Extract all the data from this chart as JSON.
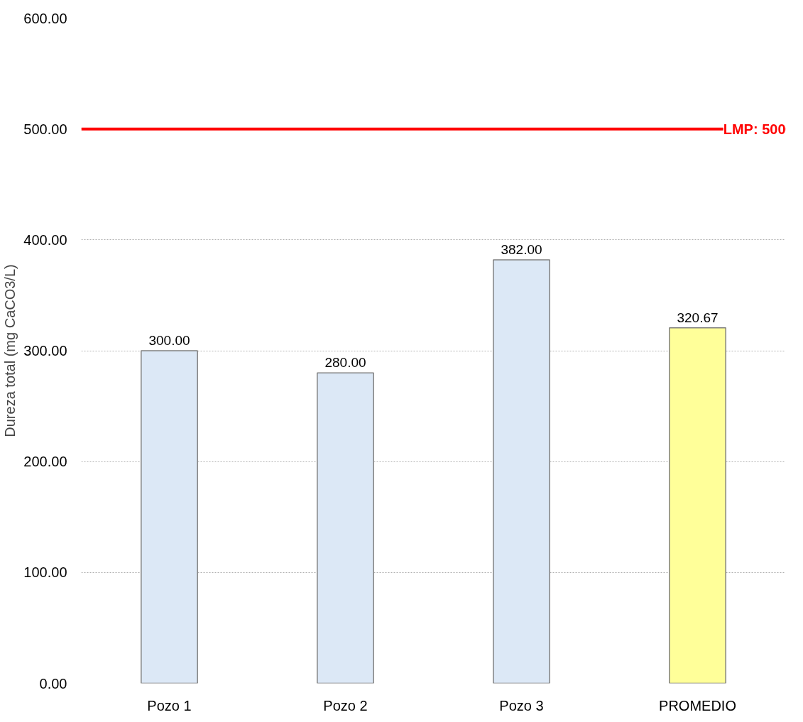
{
  "chart_data": {
    "type": "bar",
    "ylabel": "Dureza total (mg CaCO3/L)",
    "categories": [
      "Pozo 1",
      "Pozo 2",
      "Pozo 3",
      "PROMEDIO"
    ],
    "values": [
      300,
      280,
      382,
      320.67
    ],
    "colors": [
      "#dce8f6",
      "#dce8f6",
      "#dce8f6",
      "#ffff99"
    ],
    "value_labels": [
      "300.00",
      "280.00",
      "382.00",
      "320.67"
    ],
    "ylim": [
      0,
      600
    ],
    "yticks": [
      {
        "value": 0,
        "label": "0.00"
      },
      {
        "value": 100,
        "label": "100.00"
      },
      {
        "value": 200,
        "label": "200.00"
      },
      {
        "value": 300,
        "label": "300.00"
      },
      {
        "value": 400,
        "label": "400.00"
      },
      {
        "value": 500,
        "label": "500.00"
      },
      {
        "value": 600,
        "label": "600.00"
      }
    ],
    "ref_lines": [
      {
        "axis": "y",
        "value": 500,
        "label": "LMP: 500",
        "color": "#ff0000"
      }
    ],
    "grid": "y"
  }
}
